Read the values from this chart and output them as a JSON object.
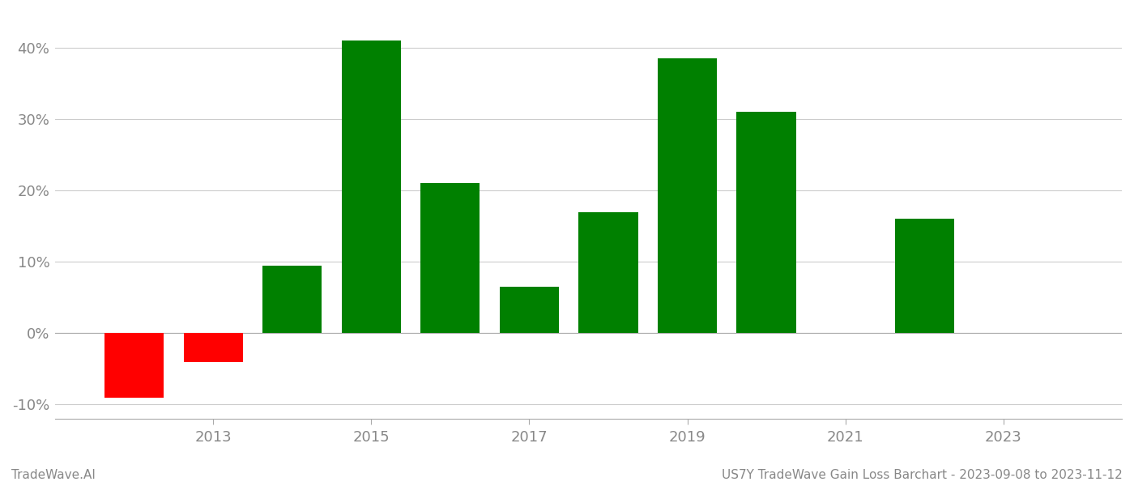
{
  "years": [
    2012,
    2013,
    2014,
    2015,
    2016,
    2017,
    2018,
    2019,
    2020,
    2022
  ],
  "values": [
    -9.0,
    -4.0,
    9.5,
    41.0,
    21.0,
    6.5,
    17.0,
    38.5,
    31.0,
    16.0
  ],
  "colors": [
    "#ff0000",
    "#ff0000",
    "#008000",
    "#008000",
    "#008000",
    "#008000",
    "#008000",
    "#008000",
    "#008000",
    "#008000"
  ],
  "xlim": [
    2011.0,
    2024.5
  ],
  "ylim": [
    -12,
    45
  ],
  "yticks": [
    -10,
    0,
    10,
    20,
    30,
    40
  ],
  "ytick_labels": [
    "-10%",
    "0%",
    "10%",
    "20%",
    "30%",
    "40%"
  ],
  "xticks": [
    2013,
    2015,
    2017,
    2019,
    2021,
    2023
  ],
  "bar_width": 0.75,
  "grid_color": "#cccccc",
  "background_color": "#ffffff",
  "footer_left": "TradeWave.AI",
  "footer_right": "US7Y TradeWave Gain Loss Barchart - 2023-09-08 to 2023-11-12",
  "footer_fontsize": 11,
  "axis_label_color": "#888888",
  "tick_label_fontsize": 13
}
